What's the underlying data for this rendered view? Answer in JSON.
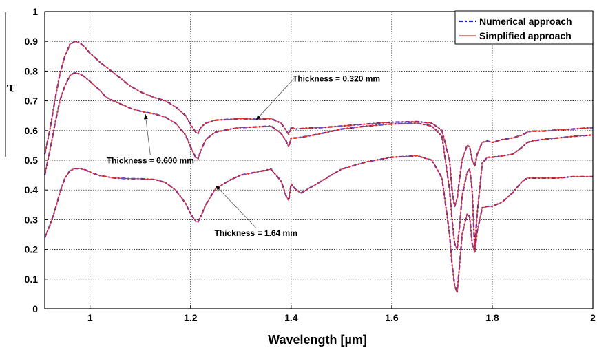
{
  "chart_data": {
    "type": "line",
    "xlabel": "Wavelength  [µm]",
    "ylabel": "τ",
    "xlim": [
      0.91,
      2.0
    ],
    "ylim": [
      0,
      1
    ],
    "xticks": [
      1,
      1.2,
      1.4,
      1.6,
      1.8,
      2
    ],
    "xtick_labels": [
      "1",
      "1.2",
      "1.4",
      "1.6",
      "1.8",
      "2"
    ],
    "yticks": [
      0,
      0.1,
      0.2,
      0.3,
      0.4,
      0.5,
      0.6,
      0.7,
      0.8,
      0.9,
      1
    ],
    "ytick_labels": [
      "0",
      "0.1",
      "0.2",
      "0.3",
      "0.4",
      "0.5",
      "0.6",
      "0.7",
      "0.8",
      "0.9",
      "1"
    ],
    "grid": true,
    "legend": {
      "position": "top-right",
      "entries": [
        {
          "label": "Numerical approach",
          "color": "#1f1fd6",
          "style": "dash-dot"
        },
        {
          "label": "Simplified approach",
          "color": "#e0302a",
          "style": "solid"
        }
      ]
    },
    "colors": {
      "numerical": "#1f1fd6",
      "simplified": "#e0302a"
    },
    "series": [
      {
        "thickness": "0.320 mm",
        "points": [
          [
            0.91,
            0.52
          ],
          [
            0.92,
            0.6
          ],
          [
            0.93,
            0.7
          ],
          [
            0.94,
            0.79
          ],
          [
            0.95,
            0.85
          ],
          [
            0.96,
            0.89
          ],
          [
            0.97,
            0.9
          ],
          [
            0.98,
            0.895
          ],
          [
            0.99,
            0.88
          ],
          [
            1.0,
            0.86
          ],
          [
            1.02,
            0.83
          ],
          [
            1.05,
            0.79
          ],
          [
            1.08,
            0.75
          ],
          [
            1.1,
            0.73
          ],
          [
            1.13,
            0.71
          ],
          [
            1.15,
            0.7
          ],
          [
            1.17,
            0.68
          ],
          [
            1.19,
            0.65
          ],
          [
            1.2,
            0.62
          ],
          [
            1.21,
            0.595
          ],
          [
            1.215,
            0.59
          ],
          [
            1.22,
            0.61
          ],
          [
            1.23,
            0.625
          ],
          [
            1.25,
            0.635
          ],
          [
            1.28,
            0.638
          ],
          [
            1.3,
            0.64
          ],
          [
            1.33,
            0.638
          ],
          [
            1.36,
            0.64
          ],
          [
            1.38,
            0.625
          ],
          [
            1.39,
            0.6
          ],
          [
            1.395,
            0.588
          ],
          [
            1.4,
            0.61
          ],
          [
            1.41,
            0.605
          ],
          [
            1.43,
            0.608
          ],
          [
            1.46,
            0.61
          ],
          [
            1.5,
            0.615
          ],
          [
            1.55,
            0.622
          ],
          [
            1.6,
            0.628
          ],
          [
            1.65,
            0.63
          ],
          [
            1.68,
            0.625
          ],
          [
            1.7,
            0.6
          ],
          [
            1.715,
            0.5
          ],
          [
            1.72,
            0.4
          ],
          [
            1.725,
            0.345
          ],
          [
            1.73,
            0.37
          ],
          [
            1.735,
            0.44
          ],
          [
            1.74,
            0.5
          ],
          [
            1.75,
            0.55
          ],
          [
            1.755,
            0.545
          ],
          [
            1.76,
            0.5
          ],
          [
            1.765,
            0.48
          ],
          [
            1.77,
            0.52
          ],
          [
            1.78,
            0.56
          ],
          [
            1.79,
            0.565
          ],
          [
            1.8,
            0.56
          ],
          [
            1.82,
            0.57
          ],
          [
            1.84,
            0.575
          ],
          [
            1.86,
            0.585
          ],
          [
            1.87,
            0.595
          ],
          [
            1.88,
            0.598
          ],
          [
            1.9,
            0.598
          ],
          [
            1.93,
            0.602
          ],
          [
            1.96,
            0.605
          ],
          [
            2.0,
            0.61
          ]
        ]
      },
      {
        "thickness": "0.600 mm",
        "points": [
          [
            0.91,
            0.45
          ],
          [
            0.92,
            0.53
          ],
          [
            0.93,
            0.62
          ],
          [
            0.94,
            0.7
          ],
          [
            0.95,
            0.75
          ],
          [
            0.96,
            0.785
          ],
          [
            0.97,
            0.795
          ],
          [
            0.98,
            0.79
          ],
          [
            0.99,
            0.78
          ],
          [
            1.0,
            0.765
          ],
          [
            1.01,
            0.75
          ],
          [
            1.02,
            0.735
          ],
          [
            1.03,
            0.715
          ],
          [
            1.04,
            0.705
          ],
          [
            1.06,
            0.69
          ],
          [
            1.08,
            0.675
          ],
          [
            1.1,
            0.665
          ],
          [
            1.13,
            0.655
          ],
          [
            1.15,
            0.645
          ],
          [
            1.17,
            0.625
          ],
          [
            1.19,
            0.585
          ],
          [
            1.2,
            0.545
          ],
          [
            1.21,
            0.51
          ],
          [
            1.215,
            0.505
          ],
          [
            1.22,
            0.53
          ],
          [
            1.23,
            0.57
          ],
          [
            1.25,
            0.595
          ],
          [
            1.28,
            0.605
          ],
          [
            1.3,
            0.61
          ],
          [
            1.33,
            0.612
          ],
          [
            1.36,
            0.615
          ],
          [
            1.38,
            0.59
          ],
          [
            1.39,
            0.565
          ],
          [
            1.395,
            0.545
          ],
          [
            1.4,
            0.575
          ],
          [
            1.41,
            0.575
          ],
          [
            1.43,
            0.58
          ],
          [
            1.46,
            0.59
          ],
          [
            1.5,
            0.605
          ],
          [
            1.55,
            0.615
          ],
          [
            1.6,
            0.622
          ],
          [
            1.65,
            0.625
          ],
          [
            1.68,
            0.615
          ],
          [
            1.7,
            0.58
          ],
          [
            1.715,
            0.4
          ],
          [
            1.72,
            0.3
          ],
          [
            1.725,
            0.22
          ],
          [
            1.73,
            0.2
          ],
          [
            1.735,
            0.28
          ],
          [
            1.74,
            0.38
          ],
          [
            1.75,
            0.46
          ],
          [
            1.755,
            0.47
          ],
          [
            1.76,
            0.4
          ],
          [
            1.765,
            0.2
          ],
          [
            1.77,
            0.32
          ],
          [
            1.78,
            0.49
          ],
          [
            1.79,
            0.51
          ],
          [
            1.8,
            0.51
          ],
          [
            1.82,
            0.515
          ],
          [
            1.84,
            0.52
          ],
          [
            1.86,
            0.545
          ],
          [
            1.87,
            0.56
          ],
          [
            1.88,
            0.565
          ],
          [
            1.9,
            0.57
          ],
          [
            1.93,
            0.575
          ],
          [
            1.96,
            0.58
          ],
          [
            2.0,
            0.585
          ]
        ]
      },
      {
        "thickness": "1.64 mm",
        "points": [
          [
            0.91,
            0.24
          ],
          [
            0.92,
            0.28
          ],
          [
            0.93,
            0.33
          ],
          [
            0.94,
            0.39
          ],
          [
            0.95,
            0.44
          ],
          [
            0.96,
            0.465
          ],
          [
            0.97,
            0.472
          ],
          [
            0.98,
            0.472
          ],
          [
            0.99,
            0.468
          ],
          [
            1.0,
            0.46
          ],
          [
            1.02,
            0.448
          ],
          [
            1.05,
            0.44
          ],
          [
            1.08,
            0.438
          ],
          [
            1.1,
            0.438
          ],
          [
            1.13,
            0.435
          ],
          [
            1.15,
            0.425
          ],
          [
            1.17,
            0.4
          ],
          [
            1.19,
            0.355
          ],
          [
            1.2,
            0.32
          ],
          [
            1.21,
            0.295
          ],
          [
            1.215,
            0.293
          ],
          [
            1.22,
            0.31
          ],
          [
            1.23,
            0.35
          ],
          [
            1.25,
            0.405
          ],
          [
            1.28,
            0.435
          ],
          [
            1.3,
            0.45
          ],
          [
            1.33,
            0.46
          ],
          [
            1.36,
            0.47
          ],
          [
            1.38,
            0.43
          ],
          [
            1.39,
            0.38
          ],
          [
            1.395,
            0.365
          ],
          [
            1.4,
            0.42
          ],
          [
            1.41,
            0.4
          ],
          [
            1.42,
            0.39
          ],
          [
            1.45,
            0.42
          ],
          [
            1.5,
            0.47
          ],
          [
            1.55,
            0.495
          ],
          [
            1.6,
            0.51
          ],
          [
            1.65,
            0.515
          ],
          [
            1.68,
            0.5
          ],
          [
            1.7,
            0.44
          ],
          [
            1.715,
            0.25
          ],
          [
            1.72,
            0.15
          ],
          [
            1.725,
            0.08
          ],
          [
            1.73,
            0.055
          ],
          [
            1.735,
            0.15
          ],
          [
            1.74,
            0.25
          ],
          [
            1.75,
            0.32
          ],
          [
            1.755,
            0.31
          ],
          [
            1.76,
            0.22
          ],
          [
            1.765,
            0.19
          ],
          [
            1.77,
            0.26
          ],
          [
            1.78,
            0.34
          ],
          [
            1.79,
            0.345
          ],
          [
            1.8,
            0.345
          ],
          [
            1.82,
            0.36
          ],
          [
            1.84,
            0.39
          ],
          [
            1.86,
            0.43
          ],
          [
            1.87,
            0.44
          ],
          [
            1.88,
            0.44
          ],
          [
            1.9,
            0.44
          ],
          [
            1.93,
            0.44
          ],
          [
            1.96,
            0.445
          ],
          [
            2.0,
            0.445
          ]
        ]
      }
    ],
    "annotations": [
      {
        "text": "Thickness = 0.320 mm",
        "target": [
          1.33,
          0.635
        ],
        "label_at": [
          1.49,
          0.765
        ]
      },
      {
        "text": "Thickness = 0.600 mm",
        "target": [
          1.11,
          0.655
        ],
        "label_at": [
          1.12,
          0.49
        ]
      },
      {
        "text": "Thickness = 1.64 mm",
        "target": [
          1.25,
          0.415
        ],
        "label_at": [
          1.33,
          0.245
        ]
      }
    ]
  }
}
